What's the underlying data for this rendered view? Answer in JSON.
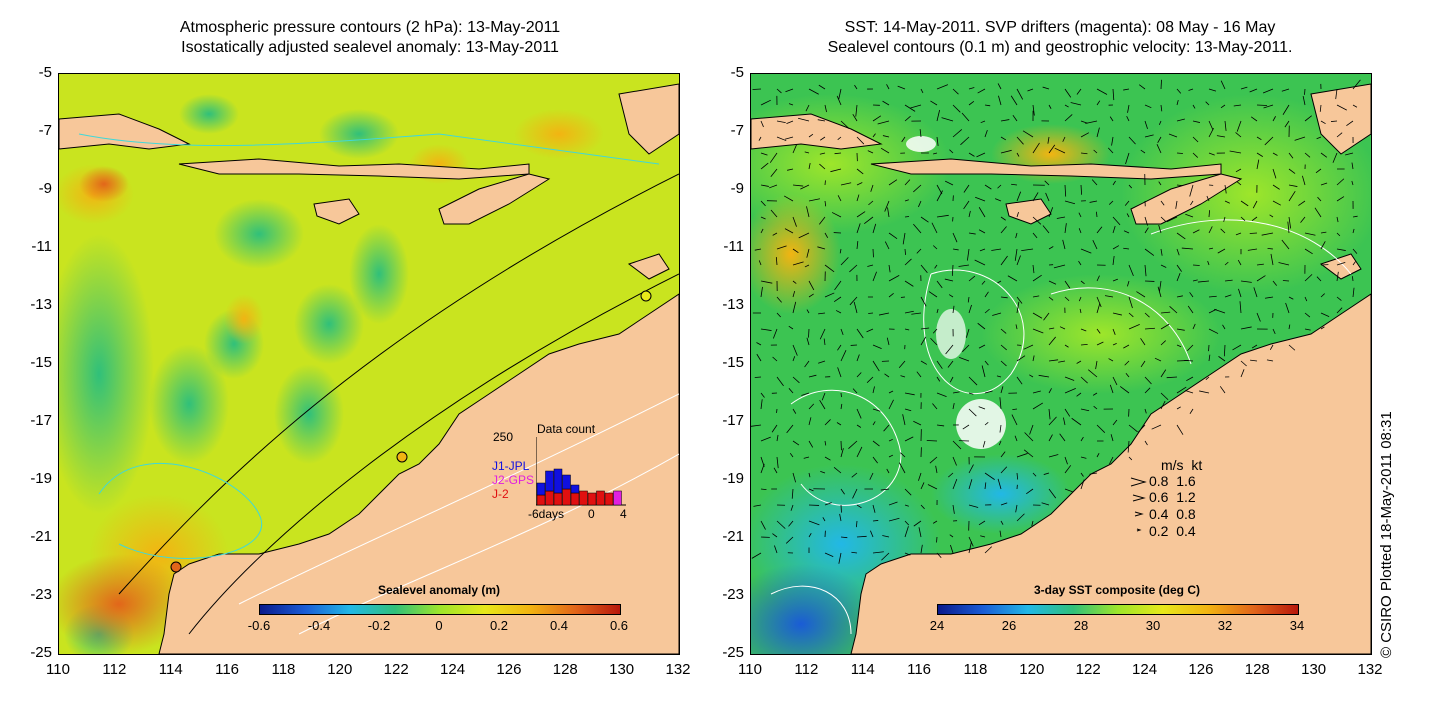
{
  "left_panel": {
    "title_line1": "Atmospheric pressure contours (2 hPa): 13-May-2011",
    "title_line2": "Isostatically adjusted sealevel anomaly: 13-May-2011",
    "colorbar_label": "Sealevel anomaly (m)",
    "colorbar_ticks": [
      "-0.6",
      "-0.4",
      "-0.2",
      "0",
      "0.2",
      "0.4",
      "0.6"
    ],
    "colorbar_colors": [
      "#0a1a8c",
      "#1a5cd6",
      "#22b8e6",
      "#30c07a",
      "#9ee62a",
      "#e8e81a",
      "#f2b412",
      "#e2661a",
      "#b8180c"
    ],
    "inset": {
      "title": "Data count",
      "ymax": "250",
      "legend": [
        "J1-JPL",
        "J2-GPS",
        "J-2"
      ],
      "legend_colors": [
        "#1010e0",
        "#e020e0",
        "#e01010"
      ],
      "xticks": [
        "-6days",
        "0",
        "4"
      ]
    }
  },
  "right_panel": {
    "title_line1": "SST: 14-May-2011. SVP drifters (magenta): 08 May - 16 May",
    "title_line2": "Sealevel contours (0.1 m) and geostrophic velocity: 13-May-2011.",
    "colorbar_label": "3-day SST composite (deg C)",
    "colorbar_ticks": [
      "24",
      "26",
      "28",
      "30",
      "32",
      "34"
    ],
    "colorbar_colors": [
      "#0a1a8c",
      "#1a5cd6",
      "#22b8e6",
      "#30c07a",
      "#9ee62a",
      "#e8e81a",
      "#f2b412",
      "#e2661a",
      "#b8180c"
    ],
    "velocity_legend": {
      "header": "m/s  kt",
      "rows": [
        "0.8  1.6",
        "0.6  1.2",
        "0.4  0.8",
        "0.2  0.4"
      ]
    },
    "copyright": "© CSIRO Plotted 18-May-2011 08:31"
  },
  "axes": {
    "yticks": [
      "-5",
      "-7",
      "-9",
      "-11",
      "-13",
      "-15",
      "-17",
      "-19",
      "-21",
      "-23",
      "-25"
    ],
    "xticks": [
      "110",
      "112",
      "114",
      "116",
      "118",
      "120",
      "122",
      "124",
      "126",
      "128",
      "130",
      "132"
    ]
  },
  "colors": {
    "land": "#f7c79a",
    "sea_left": "#d8ea1c",
    "sea_right": "#3ec84e",
    "contour": "#ffffff",
    "coast": "#000000"
  }
}
